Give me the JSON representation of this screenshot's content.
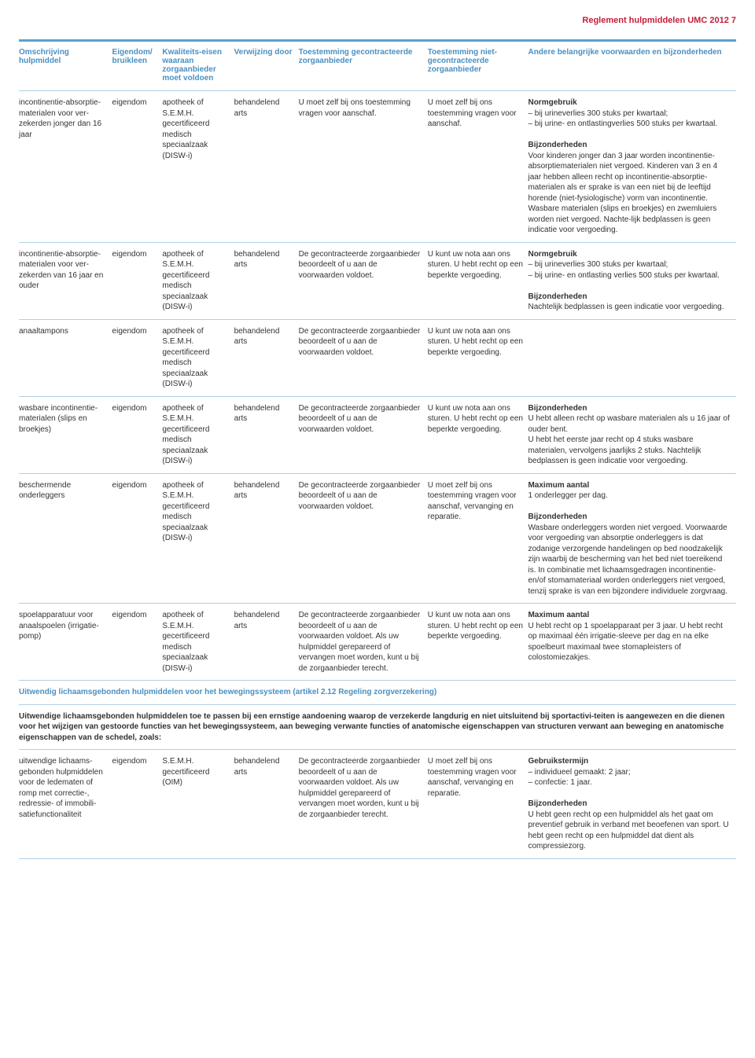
{
  "header": "Reglement hulpmiddelen UMC 2012    7",
  "columns": [
    "Omschrijving hulpmiddel",
    "Eigendom/ bruikleen",
    "Kwaliteits-eisen waaraan zorgaanbieder moet voldoen",
    "Verwijzing door",
    "Toestemming gecontracteerde zorgaanbieder",
    "Toestemming niet-gecontracteerde zorgaanbieder",
    "Andere belangrijke voorwaarden en bijzonderheden"
  ],
  "rows": [
    {
      "c1": "incontinentie-absorptie-materialen voor ver-zekerden jonger dan 16 jaar",
      "c2": "eigendom",
      "c3": "apotheek of S.E.M.H. gecertificeerd medisch speciaalzaak (DISW-i)",
      "c4": "behandelend arts",
      "c5": "U moet zelf bij ons toestemming vragen voor aanschaf.",
      "c6": "U moet zelf bij ons toestemming vragen voor aanschaf.",
      "c7": "<span class='vw-title'>Normgebruik</span>– bij urineverlies 300 stuks per kwartaal;<br>– bij urine- en ontlastingverlies 500 stuks per kwartaal.<br><br><span class='vw-title'>Bijzonderheden</span>Voor kinderen jonger dan 3 jaar worden incontinentie-absorptiematerialen niet vergoed. Kinderen van 3 en 4 jaar hebben alleen recht op incontinentie-absorptie-materialen als er sprake is van een niet bij de leeftijd horende (niet-fysiologische) vorm van incontinentie.<br>Wasbare materialen (slips en broekjes) en zwemluiers worden niet vergoed. Nachte-lijk bedplassen is geen indicatie voor vergoeding."
    },
    {
      "c1": "incontinentie-absorptie-materialen voor ver-zekerden van 16 jaar en ouder",
      "c2": "eigendom",
      "c3": "apotheek of S.E.M.H. gecertificeerd medisch speciaalzaak (DISW-i)",
      "c4": "behandelend arts",
      "c5": "De gecontracteerde zorgaanbieder beoordeelt of u aan de voorwaarden voldoet.",
      "c6": "U kunt uw nota aan ons sturen. U hebt recht op een beperkte vergoeding.",
      "c7": "<span class='vw-title'>Normgebruik</span>– bij urineverlies 300 stuks per kwartaal;<br>– bij urine- en ontlasting verlies 500 stuks per kwartaal.<br><br><span class='vw-title'>Bijzonderheden</span>Nachtelijk bedplassen is geen indicatie voor vergoeding."
    },
    {
      "c1": "anaaltampons",
      "c2": "eigendom",
      "c3": "apotheek of S.E.M.H. gecertificeerd medisch speciaalzaak (DISW-i)",
      "c4": "behandelend arts",
      "c5": "De gecontracteerde zorgaanbieder beoordeelt of u aan de voorwaarden voldoet.",
      "c6": "U kunt uw nota aan ons sturen. U hebt recht op een beperkte vergoeding.",
      "c7": ""
    },
    {
      "c1": "wasbare incontinentie-materialen (slips en broekjes)",
      "c2": "eigendom",
      "c3": "apotheek of S.E.M.H. gecertificeerd medisch speciaalzaak (DISW-i)",
      "c4": "behandelend arts",
      "c5": "De gecontracteerde zorgaanbieder beoordeelt of u aan de voorwaarden voldoet.",
      "c6": "U kunt uw nota aan ons sturen. U hebt recht op een beperkte vergoeding.",
      "c7": "<span class='vw-title'>Bijzonderheden</span>U hebt alleen recht op wasbare materialen als u 16 jaar of ouder bent.<br>U hebt het eerste jaar recht op 4 stuks wasbare materialen, vervolgens jaarlijks 2 stuks. Nachtelijk bedplassen is geen indicatie voor vergoeding."
    },
    {
      "c1": "beschermende onderleggers",
      "c2": "eigendom",
      "c3": "apotheek of S.E.M.H. gecertificeerd medisch speciaalzaak (DISW-i)",
      "c4": "behandelend arts",
      "c5": "De gecontracteerde zorgaanbieder beoordeelt of u aan de voorwaarden voldoet.",
      "c6": "U moet zelf bij ons toestemming vragen voor aanschaf, vervanging en reparatie.",
      "c7": "<span class='vw-title'>Maximum aantal</span>1 onderlegger per dag.<br><br><span class='vw-title'>Bijzonderheden</span>Wasbare onderleggers worden niet vergoed. Voorwaarde voor vergoeding van absorptie onderleggers is dat zodanige verzorgende handelingen op bed noodzakelijk zijn waarbij de bescherming van het bed niet toereikend is. In combinatie met lichaamsgedragen incontinentie- en/of stomamateriaal worden onderleggers niet vergoed, tenzij sprake is van een bijzondere individuele zorgvraag."
    },
    {
      "c1": "spoelapparatuur voor anaalspoelen (irrigatie-pomp)",
      "c2": "eigendom",
      "c3": "apotheek of S.E.M.H. gecertificeerd medisch speciaalzaak (DISW-i)",
      "c4": "behandelend arts",
      "c5": "De gecontracteerde zorgaanbieder beoordeelt of u aan de voorwaarden voldoet. Als uw hulpmiddel gerepareerd of vervangen moet worden, kunt u bij de zorgaanbieder terecht.",
      "c6": "U kunt uw nota aan ons sturen. U hebt recht op een beperkte vergoeding.",
      "c7": "<span class='vw-title'>Maximum aantal</span>U hebt recht op 1 spoelapparaat per 3 jaar. U hebt recht op maximaal één irrigatie-sleeve per dag en na elke spoelbeurt maximaal twee stomapleisters of colostomiezakjes."
    }
  ],
  "section": {
    "title": "Uitwendig lichaamsgebonden hulpmiddelen voor het bewegingssysteem (artikel 2.12 Regeling zorgverzekering)",
    "desc": "Uitwendige lichaamsgebonden hulpmiddelen toe te passen bij een ernstige aandoening waarop de verzekerde langdurig en niet uitsluitend bij sportactivi-teiten is aangewezen en die dienen voor het wijzigen van gestoorde functies van het bewegingssysteem, aan beweging verwante functies of anatomische eigenschappen van structuren verwant aan beweging en anatomische eigenschappen van de schedel, zoals:"
  },
  "rows2": [
    {
      "c1": "uitwendige lichaams-gebonden hulpmiddelen voor de ledematen of romp met correctie-, redressie- of immobili-satiefunctionaliteit",
      "c2": "eigendom",
      "c3": "S.E.M.H. gecertificeerd (OIM)",
      "c4": "behandelend arts",
      "c5": "De gecontracteerde zorgaanbieder beoordeelt of u aan de voorwaarden voldoet. Als uw hulpmiddel gerepareerd of vervangen moet worden, kunt u bij de zorgaanbieder terecht.",
      "c6": "U moet zelf bij ons toestemming vragen voor aanschaf, vervanging en reparatie.",
      "c7": "<span class='vw-title'>Gebruikstermijn</span>– individueel gemaakt: 2 jaar;<br>– confectie: 1 jaar.<br><br><span class='vw-title'>Bijzonderheden</span>U hebt geen recht op een hulpmiddel als het gaat om preventief gebruik in verband met beoefenen van sport. U hebt geen recht op een hulpmiddel dat dient als compressiezorg."
    }
  ]
}
